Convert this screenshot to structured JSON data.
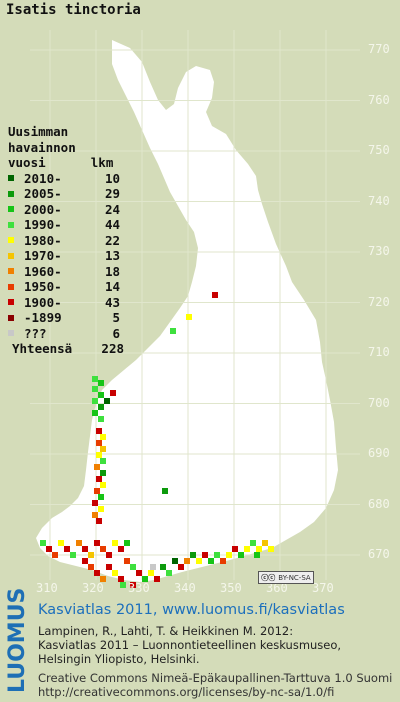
{
  "title": "Isatis tinctoria",
  "legend": {
    "header_lines": [
      "Uusimman",
      "havainnon",
      "vuosi      lkm"
    ],
    "rows": [
      {
        "label": "2010-",
        "count": "10",
        "color": "#006400"
      },
      {
        "label": "2005-",
        "count": "29",
        "color": "#0c9a0c"
      },
      {
        "label": "2000-",
        "count": "24",
        "color": "#16c416"
      },
      {
        "label": "1990-",
        "count": "44",
        "color": "#3ee03e"
      },
      {
        "label": "1980-",
        "count": "22",
        "color": "#ffff00"
      },
      {
        "label": "1970-",
        "count": "13",
        "color": "#f5c400"
      },
      {
        "label": "1960-",
        "count": "18",
        "color": "#f08000"
      },
      {
        "label": "1950-",
        "count": "14",
        "color": "#e83c00"
      },
      {
        "label": "1900-",
        "count": "43",
        "color": "#c80000"
      },
      {
        "label": "-1899",
        "count": "5",
        "color": "#8a0000"
      },
      {
        "label": "???",
        "count": "6",
        "color": "#c8c8c8"
      }
    ],
    "total_label": "Yhteensä",
    "total_count": "228"
  },
  "y_ticks": [
    "770",
    "760",
    "750",
    "740",
    "730",
    "720",
    "710",
    "700",
    "690",
    "680",
    "670"
  ],
  "x_ticks": [
    "310",
    "320",
    "330",
    "340",
    "350",
    "360",
    "370"
  ],
  "license_badge": "BY-NC-SA",
  "footer": {
    "logo": "LUOMUS",
    "link_line": "Kasviatlas 2011, www.luomus.fi/kasviatlas",
    "citation_lines": [
      "Lampinen, R., Lahti, T. & Heikkinen M. 2012:",
      "Kasviatlas 2011 – Luonnontieteellinen keskusmuseo,",
      "Helsingin Yliopisto, Helsinki."
    ],
    "license_lines": [
      "Creative Commons Nimeä-Epäkaupallinen-Tarttuva 1.0 Suomi",
      "http://creativecommons.org/licenses/by-nc-sa/1.0/fi"
    ]
  },
  "colors": {
    "background": "#d4dcb9",
    "land": "#ffffff",
    "grid": "#e2e6d2",
    "link": "#1c6fbc"
  }
}
